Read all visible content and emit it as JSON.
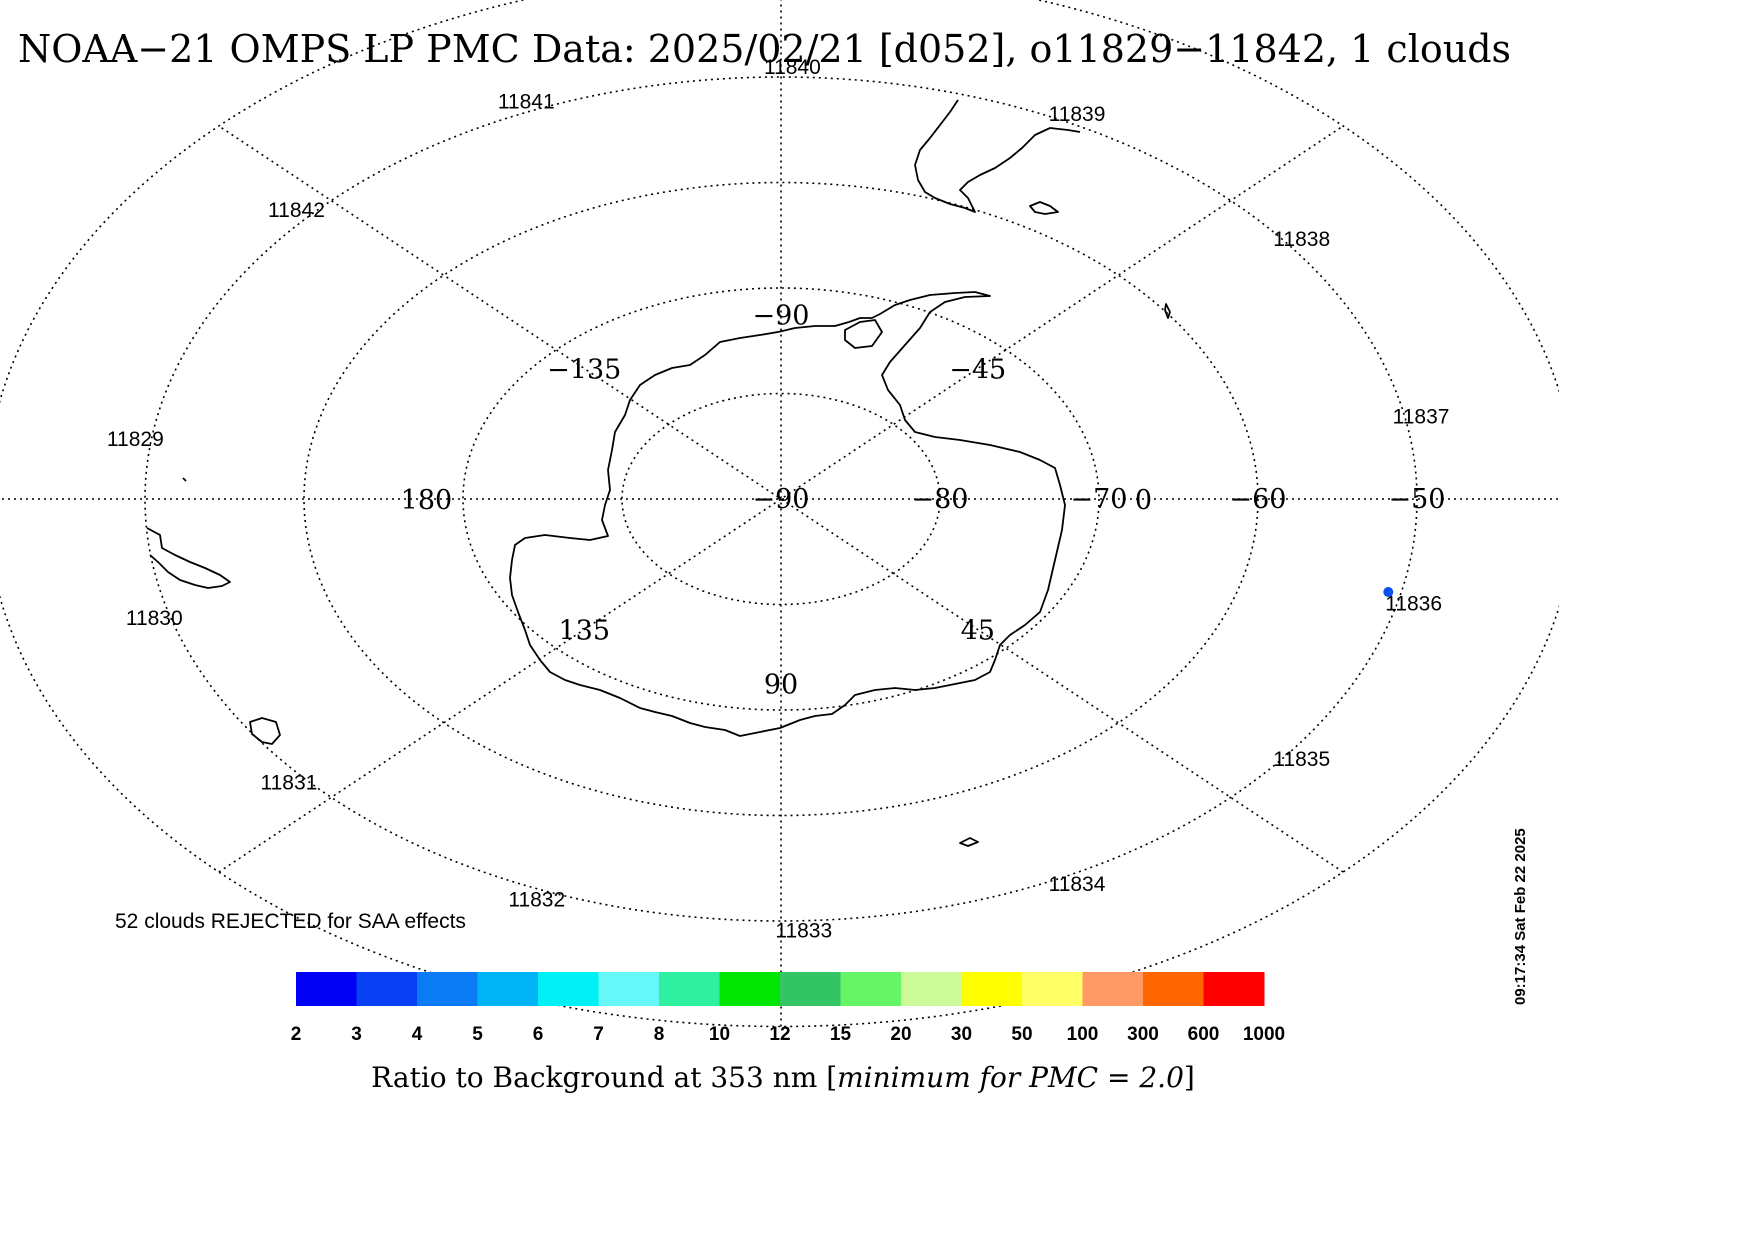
{
  "title": "NOAA−21 OMPS LP PMC Data: 2025/02/21 [d052], o11829−11842, 1 clouds",
  "orbit_labels": [
    {
      "label": "11829",
      "angle_deg": 188
    },
    {
      "label": "11830",
      "angle_deg": 164
    },
    {
      "label": "11831",
      "angle_deg": 139
    },
    {
      "label": "11832",
      "angle_deg": 112
    },
    {
      "label": "11833",
      "angle_deg": 88
    },
    {
      "label": "11834",
      "angle_deg": 63
    },
    {
      "label": "11835",
      "angle_deg": 37
    },
    {
      "label": "11836",
      "angle_deg": 14
    },
    {
      "label": "11837",
      "angle_deg": -11
    },
    {
      "label": "11838",
      "angle_deg": -37
    },
    {
      "label": "11839",
      "angle_deg": -63
    },
    {
      "label": "11840",
      "angle_deg": -89
    },
    {
      "label": "11841",
      "angle_deg": -113
    },
    {
      "label": "11842",
      "angle_deg": -138
    }
  ],
  "longitude_labels": [
    {
      "label": "0",
      "lon": 0
    },
    {
      "label": "45",
      "lon": 45
    },
    {
      "label": "90",
      "lon": 90
    },
    {
      "label": "135",
      "lon": 135
    },
    {
      "label": "180",
      "lon": 180
    },
    {
      "label": "−135",
      "lon": -135
    },
    {
      "label": "−90",
      "lon": -90
    },
    {
      "label": "−45",
      "lon": -45
    }
  ],
  "latitude_labels": [
    {
      "label": "−90",
      "lat": -90
    },
    {
      "label": "−80",
      "lat": -80
    },
    {
      "label": "−70",
      "lat": -70
    },
    {
      "label": "−60",
      "lat": -60
    },
    {
      "label": "−50",
      "lat": -50
    }
  ],
  "clouds": [
    {
      "lat": -50.8,
      "lon": 13,
      "ratio": 3,
      "color": "#0a50f0"
    }
  ],
  "note": "52 clouds REJECTED for SAA effects",
  "colorbar": {
    "colors": [
      "#0000f5",
      "#0a40f5",
      "#0a7af5",
      "#00b4f5",
      "#00f0f5",
      "#66f8f8",
      "#2ef0a0",
      "#00e600",
      "#33c466",
      "#66f566",
      "#ccfa99",
      "#ffff00",
      "#ffff66",
      "#ff9966",
      "#ff6600",
      "#ff0000"
    ],
    "ticks": [
      "2",
      "3",
      "4",
      "5",
      "6",
      "7",
      "8",
      "10",
      "12",
      "15",
      "20",
      "30",
      "50",
      "100",
      "300",
      "600",
      "1000"
    ],
    "title_main": "Ratio to Background at 353 nm [",
    "title_italic": "minimum for PMC = 2.0",
    "title_end": "]"
  },
  "timestamp": "09:17:34 Sat Feb 22 2025"
}
